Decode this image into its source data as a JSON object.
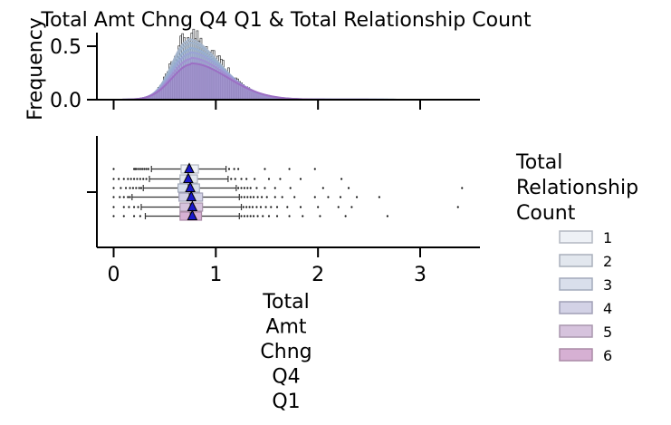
{
  "chart_data": {
    "title": "Total Amt Chng Q4 Q1 & Total Relationship Count",
    "type": "histogram+boxplot",
    "x_label": "Total\nAmt\nChng\nQ4\nQ1",
    "x_range": [
      -0.15,
      3.55
    ],
    "x_ticks": [
      0,
      1,
      2,
      3
    ],
    "top_panel": {
      "type": "histogram",
      "y_label": "Frequency",
      "y_range": [
        0,
        0.65
      ],
      "y_ticks": [
        "0.0",
        "0.5"
      ],
      "density_peaks": [
        {
          "group": "1",
          "peak": 0.55
        },
        {
          "group": "2",
          "peak": 0.52
        },
        {
          "group": "3",
          "peak": 0.47
        },
        {
          "group": "4",
          "peak": 0.43
        },
        {
          "group": "5",
          "peak": 0.38
        },
        {
          "group": "6",
          "peak": 0.33
        }
      ],
      "bins": {
        "start": 0.0,
        "end": 3.4,
        "width": 0.018,
        "mode": 0.74,
        "spread": 0.16,
        "tail": 0.55,
        "peak": 0.6
      }
    },
    "bottom_panel": {
      "type": "box",
      "series": [
        {
          "group": "1",
          "q1": 0.66,
          "median": 0.73,
          "q3": 0.83,
          "whisker_low": 0.37,
          "whisker_high": 1.1,
          "mean": 0.74,
          "outliers": [
            0.0,
            0.2,
            0.21,
            0.22,
            0.24,
            0.26,
            0.28,
            0.3,
            0.32,
            0.34,
            1.13,
            1.18,
            1.22,
            1.48,
            1.72,
            1.97
          ]
        },
        {
          "group": "2",
          "q1": 0.65,
          "median": 0.72,
          "q3": 0.82,
          "whisker_low": 0.35,
          "whisker_high": 1.12,
          "mean": 0.73,
          "outliers": [
            0.0,
            0.05,
            0.1,
            0.14,
            0.17,
            0.2,
            0.23,
            0.26,
            0.29,
            0.32,
            1.15,
            1.19,
            1.25,
            1.3,
            1.38,
            1.52,
            1.63,
            1.83,
            2.23
          ]
        },
        {
          "group": "3",
          "q1": 0.63,
          "median": 0.73,
          "q3": 0.84,
          "whisker_low": 0.29,
          "whisker_high": 1.2,
          "mean": 0.75,
          "outliers": [
            0.0,
            0.07,
            0.12,
            0.16,
            0.19,
            0.22,
            0.25,
            0.27,
            1.22,
            1.25,
            1.28,
            1.31,
            1.34,
            1.4,
            1.48,
            1.58,
            1.73,
            2.05,
            2.3,
            3.41
          ]
        },
        {
          "group": "4",
          "q1": 0.64,
          "median": 0.74,
          "q3": 0.87,
          "whisker_low": 0.18,
          "whisker_high": 1.23,
          "mean": 0.76,
          "outliers": [
            0.0,
            0.06,
            0.1,
            0.14,
            0.16,
            1.25,
            1.28,
            1.31,
            1.34,
            1.37,
            1.41,
            1.45,
            1.5,
            1.58,
            1.65,
            1.77,
            1.97,
            2.1,
            2.22,
            2.38,
            2.6
          ]
        },
        {
          "group": "5",
          "q1": 0.65,
          "median": 0.75,
          "q3": 0.87,
          "whisker_low": 0.27,
          "whisker_high": 1.25,
          "mean": 0.77,
          "outliers": [
            0.0,
            0.1,
            0.15,
            0.2,
            0.24,
            1.27,
            1.3,
            1.33,
            1.36,
            1.4,
            1.44,
            1.49,
            1.54,
            1.6,
            1.7,
            1.83,
            2.0,
            2.2,
            2.33,
            3.37
          ]
        },
        {
          "group": "6",
          "q1": 0.65,
          "median": 0.75,
          "q3": 0.86,
          "whisker_low": 0.31,
          "whisker_high": 1.23,
          "mean": 0.77,
          "outliers": [
            0.0,
            0.1,
            0.2,
            0.26,
            1.25,
            1.28,
            1.31,
            1.34,
            1.37,
            1.41,
            1.46,
            1.52,
            1.6,
            1.72,
            1.85,
            2.02,
            2.27,
            2.68
          ]
        }
      ]
    },
    "legend": {
      "title": "Total\nRelationship\nCount",
      "position": "right",
      "entries": [
        "1",
        "2",
        "3",
        "4",
        "5",
        "6"
      ]
    },
    "colors": {
      "groups": [
        "#eef1f6",
        "#e2e7ee",
        "#d9dfeb",
        "#d3d2e6",
        "#d6c3dd",
        "#d6b0d3"
      ],
      "group_edges": [
        "#b3b8c2",
        "#a9afbb",
        "#a3aabb",
        "#a09fb6",
        "#a996ad",
        "#aa8aa6"
      ],
      "kde": [
        "#a6b6cc",
        "#9fb3cc",
        "#96aed1",
        "#9aa3d6",
        "#a18fd2",
        "#9c6fc4"
      ],
      "mean_marker": "#1a1acc",
      "axes": "#000000"
    }
  }
}
